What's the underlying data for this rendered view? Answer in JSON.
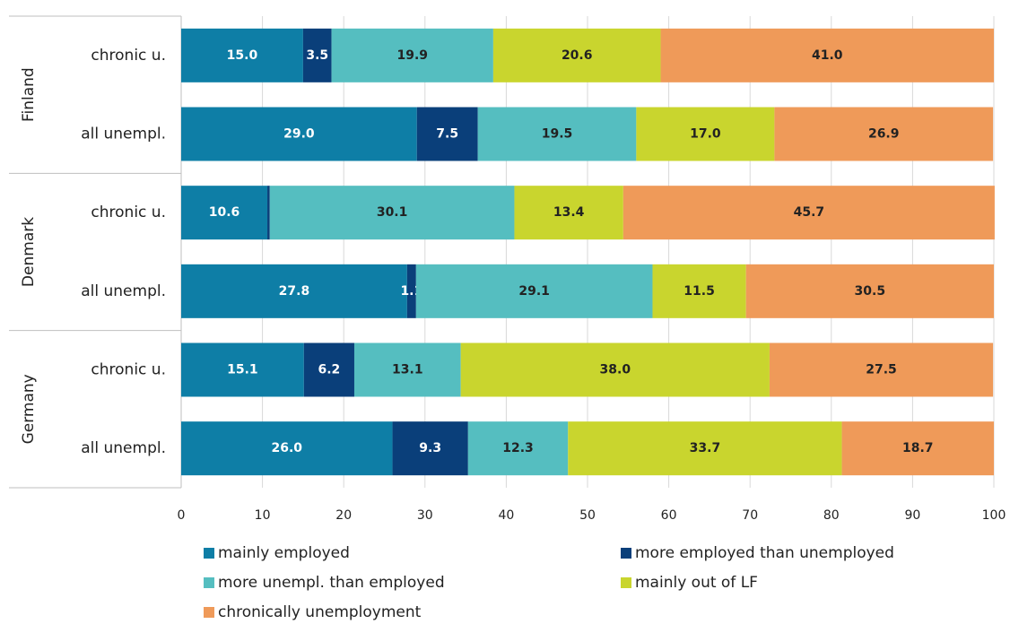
{
  "chart_data": {
    "type": "stacked-bar-horizontal",
    "groups": [
      {
        "name": "Finland",
        "categories": [
          "chronic u.",
          "all unempl."
        ]
      },
      {
        "name": "Denmark",
        "categories": [
          "chronic u.",
          "all unempl."
        ]
      },
      {
        "name": "Germany",
        "categories": [
          "chronic u.",
          "all unempl."
        ]
      }
    ],
    "series": [
      {
        "name": "mainly employed",
        "color": "#0e7ea6",
        "values": [
          15.0,
          29.0,
          10.6,
          27.8,
          15.1,
          26.0
        ],
        "value_labels": [
          "15.0",
          "29.0",
          "10.6",
          "27.8",
          "15.1",
          "26.0"
        ]
      },
      {
        "name": "more employed than unemployed",
        "color": "#0a3f7a",
        "values": [
          3.5,
          7.5,
          0.3,
          1.1,
          6.2,
          9.3
        ],
        "value_labels": [
          "3.5",
          "7.5",
          null,
          "1.1",
          "6.2",
          "9.3"
        ]
      },
      {
        "name": "more unempl. than employed",
        "color": "#55bec0",
        "values": [
          19.9,
          19.5,
          30.1,
          29.1,
          13.1,
          12.3
        ],
        "value_labels": [
          "19.9",
          "19.5",
          "30.1",
          "29.1",
          "13.1",
          "12.3"
        ]
      },
      {
        "name": "mainly out of LF",
        "color": "#c9d52e",
        "values": [
          20.6,
          17.0,
          13.4,
          11.5,
          38.0,
          33.7
        ],
        "value_labels": [
          "20.6",
          "17.0",
          "13.4",
          "11.5",
          "38.0",
          "33.7"
        ]
      },
      {
        "name": "chronically unemployment",
        "color": "#ef9a59",
        "values": [
          41.0,
          26.9,
          45.7,
          30.5,
          27.5,
          18.7
        ],
        "value_labels": [
          "41.0",
          "26.9",
          "45.7",
          "30.5",
          "27.5",
          "18.7"
        ]
      }
    ],
    "xlim": [
      0,
      100
    ],
    "xticks": [
      0,
      10,
      20,
      30,
      40,
      50,
      60,
      70,
      80,
      90,
      100
    ],
    "grid": true
  }
}
